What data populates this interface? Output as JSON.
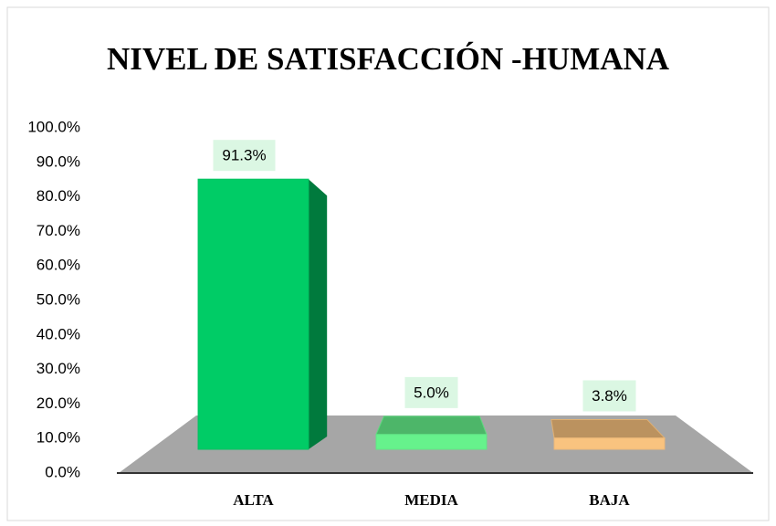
{
  "chart_data": {
    "type": "bar3d",
    "title": "NIVEL DE SATISFACCIÓN -HUMANA",
    "categories": [
      "ALTA",
      "MEDIA",
      "BAJA"
    ],
    "values": [
      91.3,
      5.0,
      3.8
    ],
    "value_labels": [
      "91.3%",
      "5.0%",
      "3.8%"
    ],
    "colors": [
      "#00cc66",
      "#66f28c",
      "#f9c37f"
    ],
    "ylim": [
      0,
      100
    ],
    "yticks": [
      {
        "value": 0,
        "label": "0.0%"
      },
      {
        "value": 10,
        "label": "10.0%"
      },
      {
        "value": 20,
        "label": "20.0%"
      },
      {
        "value": 30,
        "label": "30.0%"
      },
      {
        "value": 40,
        "label": "40.0%"
      },
      {
        "value": 50,
        "label": "50.0%"
      },
      {
        "value": 60,
        "label": "60.0%"
      },
      {
        "value": 70,
        "label": "70.0%"
      },
      {
        "value": 80,
        "label": "80.0%"
      },
      {
        "value": 90,
        "label": "90.0%"
      },
      {
        "value": 100,
        "label": "100.0%"
      }
    ],
    "grid": false
  }
}
